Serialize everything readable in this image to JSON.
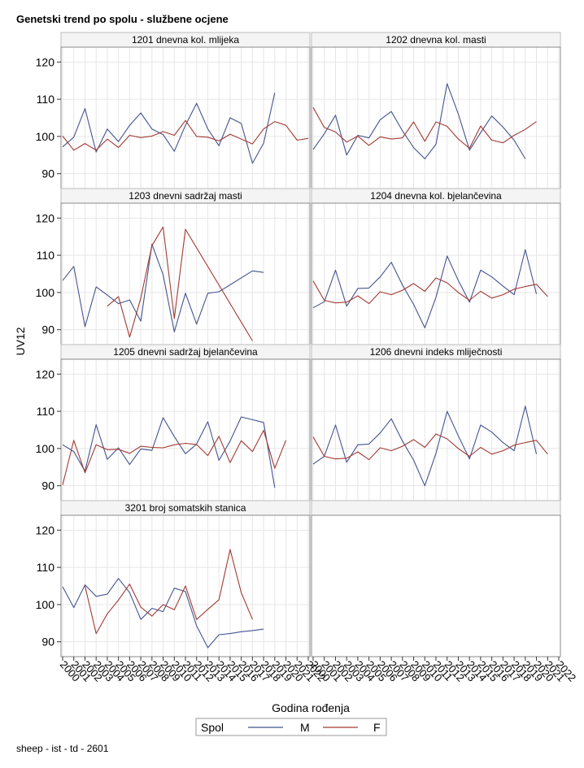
{
  "title": "Genetski trend po spolu - službene ocjene",
  "footer": "sheep - ist - td - 2601",
  "colors": {
    "M": "#44548f",
    "F": "#a33a32",
    "header_bg": "#f4f4f4",
    "frame": "#8a8a8a",
    "grid": "#e6e6e6"
  },
  "chart_data": {
    "type": "line",
    "ylabel": "UV12",
    "xlabel": "Godina rođenja",
    "ylim": [
      86,
      124
    ],
    "yticks": [
      90,
      100,
      110,
      120
    ],
    "xlim": [
      2000,
      2022
    ],
    "xtick_labels": [
      "2000",
      "2001",
      "2002",
      "2003",
      "2004",
      "2005",
      "2006",
      "2007",
      "2008",
      "2009",
      "2010",
      "2011",
      "2012",
      "2013",
      "2014",
      "2015",
      "2016",
      "2017",
      "2018",
      "2019",
      "2020",
      "2021",
      "2022"
    ],
    "legend": {
      "title": "Spol",
      "entries": [
        {
          "key": "M",
          "label": "M"
        },
        {
          "key": "F",
          "label": "F"
        }
      ],
      "placement": "bottom"
    },
    "panels": [
      {
        "title": "1201 dnevna kol. mlijeka",
        "series": [
          {
            "name": "M",
            "x": [
              2000,
              2001,
              2002,
              2003,
              2004,
              2005,
              2006,
              2007,
              2008,
              2009,
              2010,
              2011,
              2012,
              2013,
              2014,
              2015,
              2016,
              2017,
              2018,
              2019
            ],
            "values": [
              97.2,
              99.8,
              107.5,
              95.8,
              102,
              98.6,
              103,
              106.3,
              102,
              100.5,
              96,
              103,
              108.9,
              102,
              97.5,
              105,
              103.5,
              92.8,
              98.2,
              111.7
            ]
          },
          {
            "name": "F",
            "x": [
              2000,
              2001,
              2002,
              2003,
              2004,
              2005,
              2006,
              2007,
              2008,
              2009,
              2010,
              2011,
              2012,
              2013,
              2014,
              2015,
              2016,
              2017,
              2018,
              2019,
              2020,
              2021,
              2022
            ],
            "values": [
              100.1,
              96.3,
              98.1,
              96.3,
              99.3,
              97,
              100.3,
              99.7,
              100.1,
              101.3,
              100.3,
              104.3,
              100,
              99.8,
              98.8,
              100.6,
              99.3,
              98,
              102,
              104,
              103,
              99,
              99.5
            ]
          }
        ]
      },
      {
        "title": "1202 dnevna kol. masti",
        "series": [
          {
            "name": "M",
            "x": [
              2000,
              2001,
              2002,
              2003,
              2004,
              2005,
              2006,
              2007,
              2008,
              2009,
              2010,
              2011,
              2012,
              2013,
              2014,
              2015,
              2016,
              2017,
              2018,
              2019
            ],
            "values": [
              96.5,
              100.7,
              105.7,
              95,
              100.3,
              99.6,
              104.5,
              106.7,
              101.5,
              97,
              94,
              97.9,
              114.2,
              106,
              96.3,
              101,
              105.5,
              102.5,
              99,
              94
            ]
          },
          {
            "name": "F",
            "x": [
              2000,
              2001,
              2002,
              2003,
              2004,
              2005,
              2006,
              2007,
              2008,
              2009,
              2010,
              2011,
              2012,
              2013,
              2014,
              2015,
              2016,
              2017,
              2018,
              2019,
              2020
            ],
            "values": [
              107.8,
              102.4,
              101.2,
              98.5,
              100.1,
              97.6,
              99.9,
              99.3,
              99.6,
              103.9,
              98.7,
              103.9,
              102.7,
              99.3,
              96.8,
              102.8,
              99,
              98.3,
              100.3,
              101.9,
              104
            ]
          }
        ]
      },
      {
        "title": "1203 dnevni sadržaj masti",
        "series": [
          {
            "name": "M",
            "x": [
              2000,
              2001,
              2002,
              2003,
              2004,
              2005,
              2006,
              2007,
              2008,
              2009,
              2010,
              2011,
              2012,
              2013,
              2014,
              2017,
              2018
            ],
            "values": [
              103.2,
              107,
              90.8,
              101.5,
              99.3,
              97,
              98,
              92.3,
              113,
              104.8,
              89.4,
              99.8,
              91.5,
              99.8,
              100.2,
              105.8,
              105.4
            ]
          },
          {
            "name": "F",
            "x": [
              2004,
              2005,
              2006,
              2007,
              2008,
              2009,
              2010,
              2011,
              2017
            ],
            "values": [
              96.3,
              98.9,
              88,
              98.5,
              112.6,
              117.6,
              93,
              117,
              87
            ]
          }
        ]
      },
      {
        "title": "1204 dnevna kol. bjelančevina",
        "series": [
          {
            "name": "M",
            "x": [
              2000,
              2001,
              2002,
              2003,
              2004,
              2005,
              2006,
              2007,
              2008,
              2009,
              2010,
              2011,
              2012,
              2013,
              2014,
              2015,
              2016,
              2017,
              2018,
              2019,
              2020
            ],
            "values": [
              95.9,
              97.5,
              106,
              96.3,
              101.1,
              101.2,
              104.2,
              108.1,
              102,
              96.8,
              90.5,
              98.7,
              109.8,
              103.2,
              97.4,
              106,
              104.2,
              101.7,
              99.4,
              111.5,
              99.6
            ]
          },
          {
            "name": "F",
            "x": [
              2000,
              2001,
              2002,
              2003,
              2004,
              2005,
              2006,
              2007,
              2008,
              2009,
              2010,
              2011,
              2012,
              2013,
              2014,
              2015,
              2016,
              2017,
              2018,
              2019,
              2020,
              2021
            ],
            "values": [
              103.1,
              97.9,
              97.2,
              97.4,
              99.1,
              97,
              100.2,
              99.4,
              100.6,
              102.4,
              100.3,
              103.9,
              102.6,
              100,
              97.9,
              100.3,
              98.5,
              99.4,
              100.9,
              101.6,
              102.2,
              98.9
            ]
          }
        ]
      },
      {
        "title": "1205 dnevni sadržaj bjelančevina",
        "series": [
          {
            "name": "M",
            "x": [
              2000,
              2001,
              2002,
              2003,
              2004,
              2005,
              2006,
              2007,
              2008,
              2009,
              2010,
              2011,
              2012,
              2013,
              2014,
              2015,
              2016,
              2018,
              2019
            ],
            "values": [
              101,
              99.2,
              93.9,
              106.4,
              97.1,
              100.2,
              95.7,
              99.9,
              99.5,
              108.3,
              103.2,
              98.6,
              101.2,
              107.2,
              96.8,
              102,
              108.5,
              107,
              89.5
            ]
          },
          {
            "name": "F",
            "x": [
              2000,
              2001,
              2002,
              2003,
              2004,
              2005,
              2006,
              2007,
              2008,
              2009,
              2010,
              2011,
              2012,
              2013,
              2014,
              2015,
              2016,
              2017,
              2018,
              2019,
              2020
            ],
            "values": [
              90.2,
              102.2,
              93.5,
              101,
              99.7,
              99.8,
              98.7,
              100.6,
              100.3,
              100.2,
              101,
              101.4,
              101.1,
              98.1,
              103.3,
              96.2,
              102.1,
              99.2,
              104.9,
              94.7,
              102.2
            ]
          }
        ]
      },
      {
        "title": "1206 dnevni indeks mliječnosti",
        "series": [
          {
            "name": "M",
            "x": [
              2000,
              2001,
              2002,
              2003,
              2004,
              2005,
              2006,
              2007,
              2008,
              2009,
              2010,
              2011,
              2012,
              2013,
              2014,
              2015,
              2016,
              2017,
              2018,
              2019,
              2020
            ],
            "values": [
              95.8,
              97.9,
              106.3,
              96.3,
              101,
              101.2,
              104.2,
              108,
              102,
              96.9,
              90,
              98.7,
              110,
              103.4,
              97.2,
              106.3,
              104.4,
              101.6,
              99.4,
              111.4,
              98.5
            ]
          },
          {
            "name": "F",
            "x": [
              2000,
              2001,
              2002,
              2003,
              2004,
              2005,
              2006,
              2007,
              2008,
              2009,
              2010,
              2011,
              2012,
              2013,
              2014,
              2015,
              2016,
              2017,
              2018,
              2019,
              2020,
              2021
            ],
            "values": [
              103.1,
              97.9,
              97.2,
              97.4,
              99.1,
              97,
              100.2,
              99.4,
              100.6,
              102.4,
              100.3,
              103.9,
              102.6,
              100,
              97.9,
              100.3,
              98.5,
              99.4,
              100.9,
              101.6,
              102.2,
              98.5
            ]
          }
        ]
      },
      {
        "title": "3201 broj somatskih stanica",
        "series": [
          {
            "name": "M",
            "x": [
              2000,
              2001,
              2002,
              2003,
              2004,
              2005,
              2006,
              2007,
              2008,
              2009,
              2010,
              2011,
              2012,
              2013,
              2014,
              2015,
              2016,
              2017,
              2018
            ],
            "values": [
              104.8,
              99.2,
              105.3,
              102.2,
              102.8,
              107,
              103.2,
              96,
              99,
              98.1,
              104.4,
              103.5,
              94.3,
              88.4,
              91.9,
              92.2,
              92.7,
              93,
              93.4
            ]
          },
          {
            "name": "F",
            "x": [
              2002,
              2003,
              2004,
              2005,
              2006,
              2007,
              2008,
              2009,
              2010,
              2011,
              2012,
              2013,
              2014,
              2015,
              2016,
              2017
            ],
            "values": [
              105,
              92.2,
              97.5,
              101.2,
              105.5,
              99.3,
              96.9,
              100,
              98.6,
              105,
              96,
              98.7,
              101.3,
              114.8,
              103.2,
              96
            ]
          }
        ]
      }
    ]
  }
}
